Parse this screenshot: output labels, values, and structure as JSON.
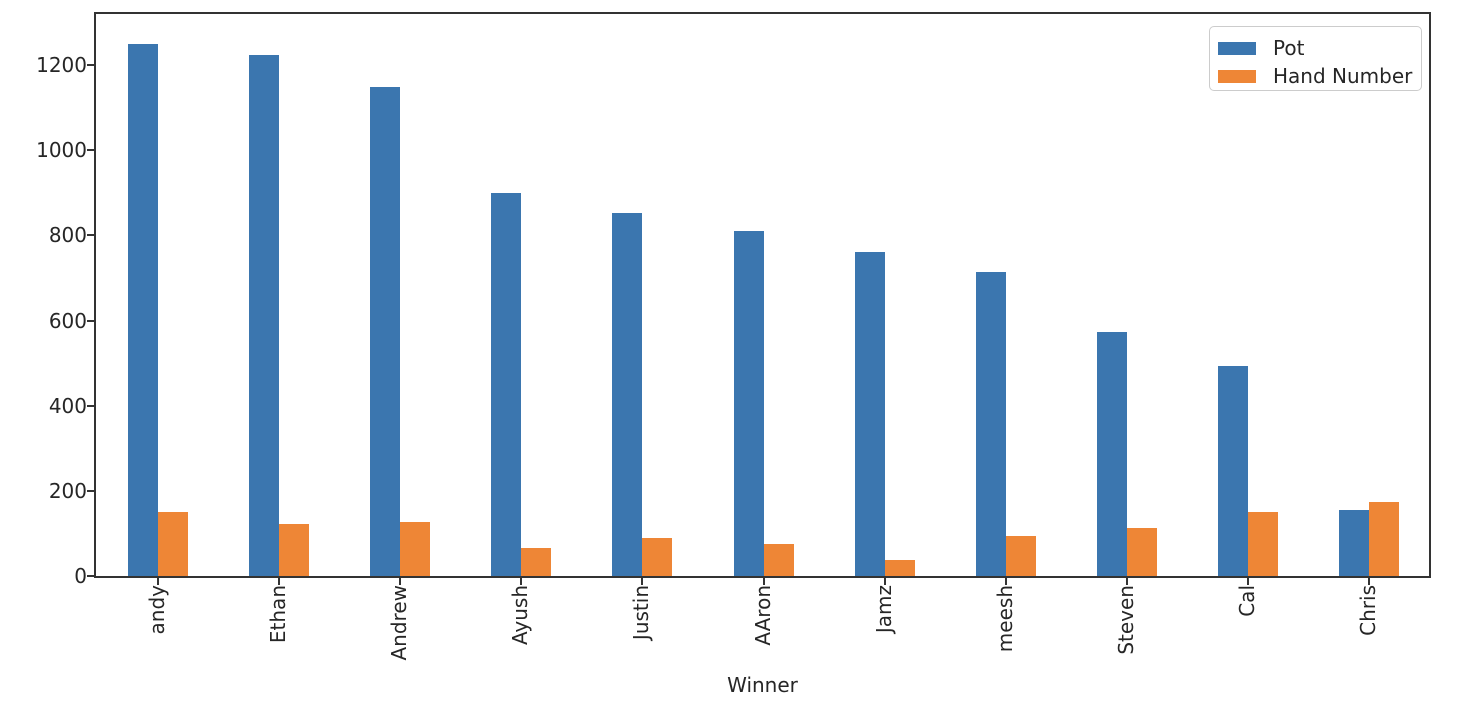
{
  "chart_data": {
    "type": "bar",
    "title": "",
    "xlabel": "Winner",
    "ylabel": "",
    "categories": [
      "andy",
      "Ethan",
      "Andrew",
      "Ayush",
      "Justin",
      "AAron",
      "Jamz",
      "meesh",
      "Steven",
      "Cal",
      "Chris"
    ],
    "series": [
      {
        "name": "Pot",
        "color": "#3b76af",
        "values": [
          1250,
          1224,
          1148,
          900,
          852,
          810,
          762,
          714,
          573,
          494,
          155
        ]
      },
      {
        "name": "Hand Number",
        "color": "#ee8636",
        "values": [
          150,
          122,
          127,
          66,
          89,
          75,
          38,
          94,
          113,
          150,
          173
        ]
      }
    ],
    "yticks": [
      0,
      200,
      400,
      600,
      800,
      1000,
      1200
    ],
    "ylim": [
      0,
      1320
    ],
    "grid": false,
    "legend_position": "upper right",
    "bar_orientation": "vertical",
    "xtick_rotation": 90
  },
  "legend": {
    "items": [
      {
        "label": "Pot",
        "color": "#3b76af"
      },
      {
        "label": "Hand Number",
        "color": "#ee8636"
      }
    ]
  },
  "axes": {
    "spine_color": "#333333",
    "tick_color": "#262626",
    "background": "#ffffff"
  }
}
